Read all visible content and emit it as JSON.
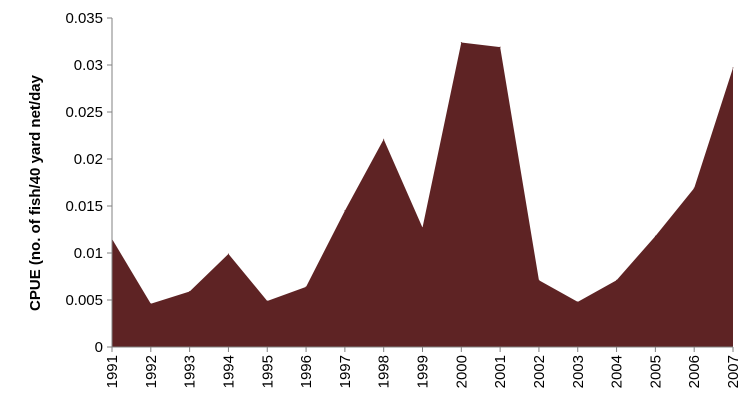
{
  "chart_data": {
    "type": "area",
    "title": "",
    "xlabel": "",
    "ylabel": "CPUE (no. of fish/40 yard net/day",
    "x": [
      "1991",
      "1992",
      "1993",
      "1994",
      "1995",
      "1996",
      "1997",
      "1998",
      "1999",
      "2000",
      "2001",
      "2002",
      "2003",
      "2004",
      "2005",
      "2006",
      "2007"
    ],
    "values": [
      0.0115,
      0.0046,
      0.0059,
      0.0099,
      0.0049,
      0.0064,
      0.0145,
      0.0221,
      0.0127,
      0.0324,
      0.0319,
      0.0071,
      0.0048,
      0.0071,
      0.0118,
      0.0169,
      0.0297
    ],
    "yticks": [
      "0",
      "0.005",
      "0.01",
      "0.015",
      "0.02",
      "0.025",
      "0.03",
      "0.035"
    ],
    "ylim": [
      0,
      0.035
    ],
    "grid": false,
    "legend": "none",
    "fill_color": "#5e2324"
  }
}
